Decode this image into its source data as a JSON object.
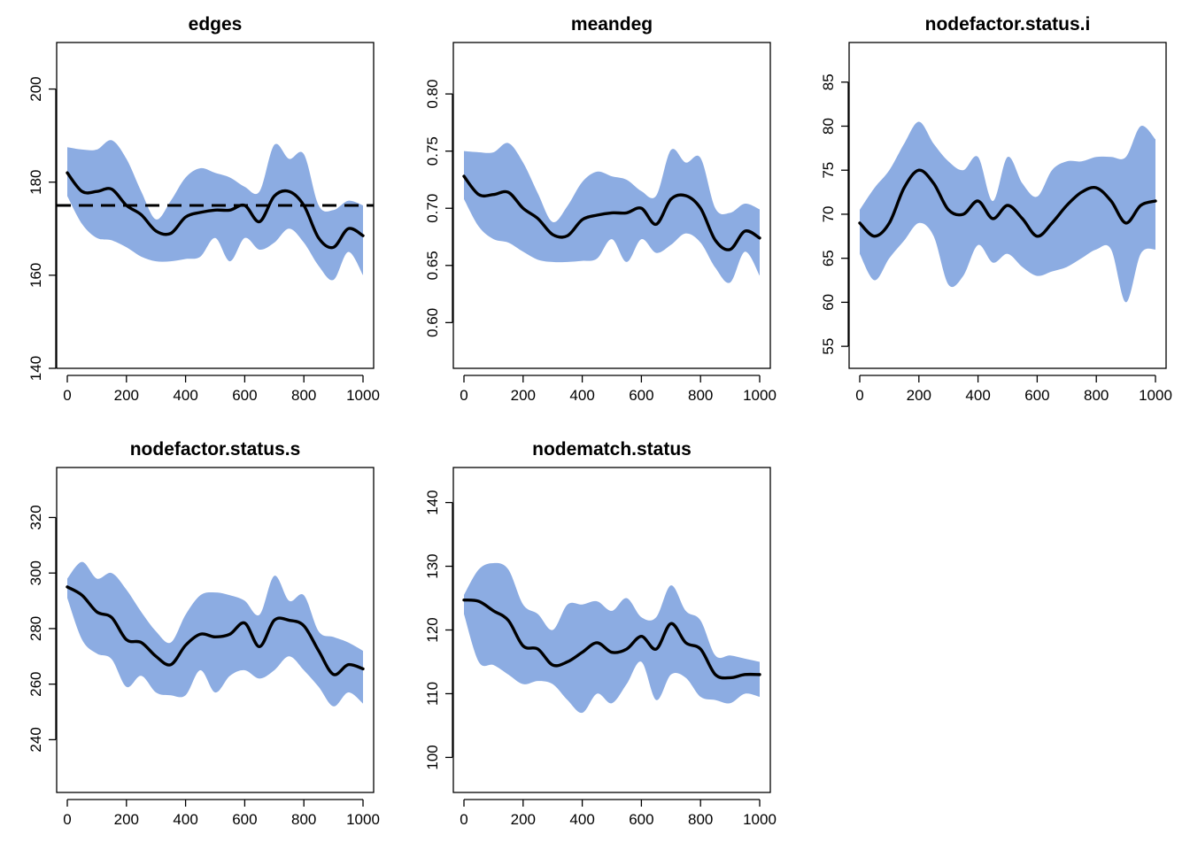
{
  "colors": {
    "band": "#8cacE2",
    "line": "#000000",
    "target": "#000000"
  },
  "chart_data": [
    {
      "type": "area",
      "title": "edges",
      "xlim": [
        0,
        1000
      ],
      "ylim": [
        140,
        210
      ],
      "xticks": [
        0,
        200,
        400,
        600,
        800,
        1000
      ],
      "yticks": [
        140,
        160,
        180,
        200
      ],
      "target": 175,
      "grid": false,
      "x": [
        0,
        50,
        100,
        150,
        200,
        250,
        300,
        350,
        400,
        450,
        500,
        550,
        600,
        650,
        700,
        750,
        800,
        850,
        900,
        950,
        1000
      ],
      "series": [
        {
          "role": "mean",
          "values": [
            182,
            178,
            178,
            178.5,
            175,
            173,
            169.5,
            169,
            172.5,
            173.5,
            174,
            174,
            175,
            171.5,
            177,
            178,
            175,
            168,
            166,
            170,
            168.5
          ]
        },
        {
          "role": "upper",
          "values": [
            187.5,
            187,
            187,
            189,
            185,
            178,
            172,
            176,
            181,
            183,
            182,
            181,
            179,
            178,
            188,
            185,
            186,
            175,
            174,
            176,
            175
          ]
        },
        {
          "role": "lower",
          "values": [
            177,
            171,
            168,
            167.5,
            166,
            164,
            163,
            163,
            163.5,
            164,
            168,
            163,
            168,
            165.5,
            167,
            170,
            167,
            162,
            159,
            165,
            160
          ]
        }
      ]
    },
    {
      "type": "area",
      "title": "meandeg",
      "xlim": [
        0,
        1000
      ],
      "ylim": [
        0.56,
        0.845
      ],
      "xticks": [
        0,
        200,
        400,
        600,
        800,
        1000
      ],
      "yticks": [
        0.6,
        0.65,
        0.7,
        0.75,
        0.8
      ],
      "ytick_labels": [
        "0.60",
        "0.65",
        "0.70",
        "0.75",
        "0.80"
      ],
      "grid": false,
      "x": [
        0,
        50,
        100,
        150,
        200,
        250,
        300,
        350,
        400,
        450,
        500,
        550,
        600,
        650,
        700,
        750,
        800,
        850,
        900,
        950,
        1000
      ],
      "series": [
        {
          "role": "mean",
          "values": [
            0.728,
            0.712,
            0.712,
            0.714,
            0.7,
            0.691,
            0.677,
            0.676,
            0.69,
            0.694,
            0.696,
            0.696,
            0.7,
            0.686,
            0.708,
            0.711,
            0.7,
            0.672,
            0.664,
            0.68,
            0.674
          ]
        },
        {
          "role": "upper",
          "values": [
            0.75,
            0.749,
            0.749,
            0.757,
            0.74,
            0.713,
            0.688,
            0.702,
            0.723,
            0.732,
            0.728,
            0.725,
            0.715,
            0.711,
            0.751,
            0.74,
            0.744,
            0.7,
            0.696,
            0.704,
            0.699
          ]
        },
        {
          "role": "lower",
          "values": [
            0.708,
            0.684,
            0.673,
            0.67,
            0.662,
            0.655,
            0.653,
            0.653,
            0.654,
            0.656,
            0.673,
            0.653,
            0.673,
            0.661,
            0.668,
            0.678,
            0.67,
            0.648,
            0.635,
            0.662,
            0.641
          ]
        }
      ]
    },
    {
      "type": "area",
      "title": "nodefactor.status.i",
      "xlim": [
        0,
        1000
      ],
      "ylim": [
        52.5,
        89.5
      ],
      "xticks": [
        0,
        200,
        400,
        600,
        800,
        1000
      ],
      "yticks": [
        55,
        60,
        65,
        70,
        75,
        80,
        85
      ],
      "grid": false,
      "x": [
        0,
        50,
        100,
        150,
        200,
        250,
        300,
        350,
        400,
        450,
        500,
        550,
        600,
        650,
        700,
        750,
        800,
        850,
        900,
        950,
        1000
      ],
      "series": [
        {
          "role": "mean",
          "values": [
            69,
            67.5,
            69,
            73,
            75,
            73.5,
            70.5,
            70,
            71.5,
            69.5,
            71,
            69.5,
            67.5,
            69,
            71,
            72.5,
            73,
            71.5,
            69,
            71,
            71.5
          ]
        },
        {
          "role": "upper",
          "values": [
            70.5,
            73,
            75,
            78,
            80.5,
            78,
            76,
            75,
            76.5,
            71.5,
            76.5,
            73.5,
            72,
            75,
            76,
            76,
            76.5,
            76.5,
            76.5,
            80,
            78.5
          ]
        },
        {
          "role": "lower",
          "values": [
            65.5,
            62.5,
            65,
            67,
            69,
            67.5,
            62,
            63,
            66.5,
            64.5,
            65.5,
            64,
            63,
            63.5,
            64,
            65,
            66,
            66,
            60,
            65.5,
            66
          ]
        }
      ]
    },
    {
      "type": "area",
      "title": "nodefactor.status.s",
      "xlim": [
        0,
        1000
      ],
      "ylim": [
        221,
        338
      ],
      "xticks": [
        0,
        200,
        400,
        600,
        800,
        1000
      ],
      "yticks": [
        240,
        260,
        280,
        300,
        320
      ],
      "grid": false,
      "x": [
        0,
        50,
        100,
        150,
        200,
        250,
        300,
        350,
        400,
        450,
        500,
        550,
        600,
        650,
        700,
        750,
        800,
        850,
        900,
        950,
        1000
      ],
      "series": [
        {
          "role": "mean",
          "values": [
            295,
            292,
            286,
            284,
            276,
            275,
            270,
            267,
            274,
            278,
            277,
            278,
            282,
            273.5,
            283,
            283,
            281,
            272,
            263.5,
            267,
            265.5
          ]
        },
        {
          "role": "upper",
          "values": [
            298,
            304,
            298,
            300,
            294,
            286,
            279,
            275,
            285,
            292,
            293,
            292,
            290,
            285,
            299,
            290,
            292,
            279,
            277,
            275,
            272
          ]
        },
        {
          "role": "lower",
          "values": [
            291,
            276,
            271,
            269,
            259,
            263,
            257,
            256,
            256,
            265,
            257,
            263,
            265,
            262,
            265,
            270,
            265,
            259,
            252,
            257,
            253
          ]
        }
      ]
    },
    {
      "type": "area",
      "title": "nodematch.status",
      "xlim": [
        0,
        1000
      ],
      "ylim": [
        94.5,
        145.5
      ],
      "xticks": [
        0,
        200,
        400,
        600,
        800,
        1000
      ],
      "yticks": [
        100,
        110,
        120,
        130,
        140
      ],
      "grid": false,
      "x": [
        0,
        50,
        100,
        150,
        200,
        250,
        300,
        350,
        400,
        450,
        500,
        550,
        600,
        650,
        700,
        750,
        800,
        850,
        900,
        950,
        1000
      ],
      "series": [
        {
          "role": "mean",
          "values": [
            124.7,
            124.5,
            123,
            121.5,
            117.5,
            117,
            114.5,
            115,
            116.5,
            118,
            116.5,
            117,
            119,
            117,
            121,
            118,
            117,
            113,
            112.5,
            113,
            113
          ]
        },
        {
          "role": "upper",
          "values": [
            125.5,
            129.5,
            130.5,
            129.5,
            124,
            122.5,
            120,
            124,
            124,
            124.5,
            123,
            125,
            122,
            122,
            127,
            123,
            121.5,
            116,
            116,
            115.5,
            115
          ]
        },
        {
          "role": "lower",
          "values": [
            122.5,
            115,
            114.5,
            113,
            111.5,
            112,
            111.5,
            109,
            107,
            110,
            108.5,
            111.5,
            115,
            109,
            113,
            112.5,
            109.5,
            109,
            108.5,
            110,
            109.5
          ]
        }
      ]
    }
  ]
}
